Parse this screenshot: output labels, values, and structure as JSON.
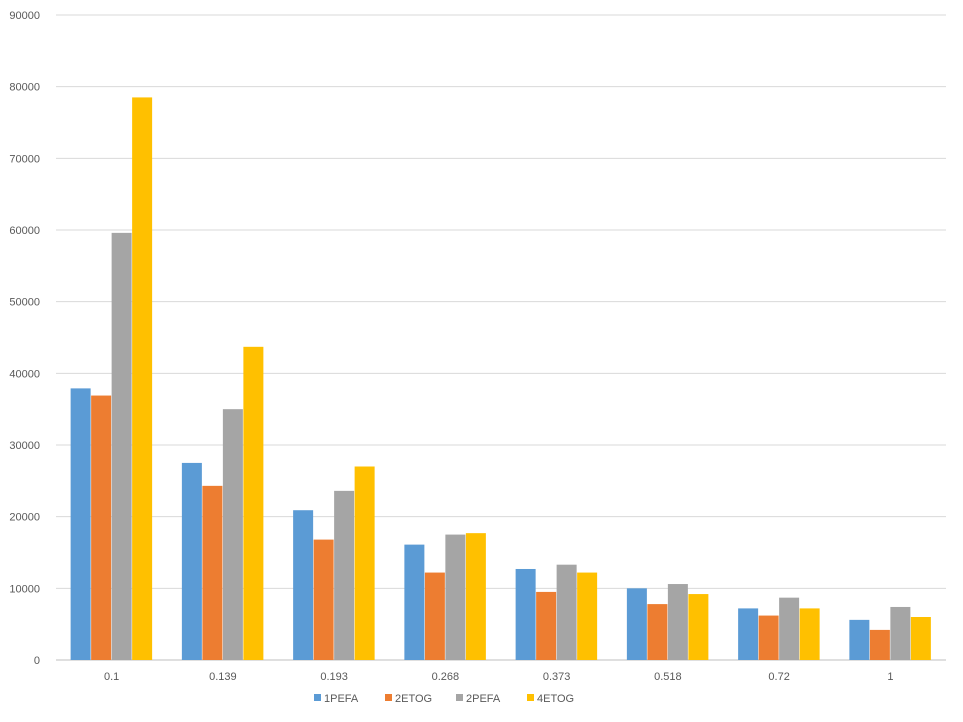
{
  "chart_data": {
    "type": "bar",
    "title": "",
    "xlabel": "",
    "ylabel": "",
    "ylim": [
      0,
      90000
    ],
    "yticks": [
      0,
      10000,
      20000,
      30000,
      40000,
      50000,
      60000,
      70000,
      80000,
      90000
    ],
    "ytick_labels": [
      "0",
      "10000",
      "20000",
      "30000",
      "40000",
      "50000",
      "60000",
      "70000",
      "80000",
      "90000"
    ],
    "categories": [
      "0.1",
      "0.139",
      "0.193",
      "0.268",
      "0.373",
      "0.518",
      "0.72",
      "1"
    ],
    "grid": true,
    "legend_position": "bottom",
    "series": [
      {
        "name": "1PEFA",
        "color": "#5B9BD5",
        "values": [
          37900,
          27500,
          20900,
          16100,
          12700,
          10000,
          7200,
          5600
        ]
      },
      {
        "name": "2ETOG",
        "color": "#ED7D31",
        "values": [
          36900,
          24300,
          16800,
          12200,
          9500,
          7800,
          6200,
          4200
        ]
      },
      {
        "name": "2PEFA",
        "color": "#A5A5A5",
        "values": [
          59600,
          35000,
          23600,
          17500,
          13300,
          10600,
          8700,
          7400
        ]
      },
      {
        "name": "4ETOG",
        "color": "#FFC000",
        "values": [
          78500,
          43700,
          27000,
          17700,
          12200,
          9200,
          7200,
          6000
        ]
      }
    ]
  }
}
